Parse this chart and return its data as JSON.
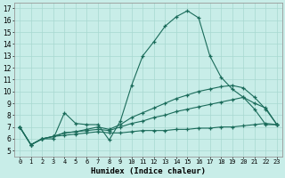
{
  "xlabel": "Humidex (Indice chaleur)",
  "background_color": "#c8ede8",
  "grid_color": "#a8d8d0",
  "line_color": "#1a6b5a",
  "xlim": [
    -0.5,
    23.5
  ],
  "ylim": [
    4.5,
    17.5
  ],
  "xticks": [
    0,
    1,
    2,
    3,
    4,
    5,
    6,
    7,
    8,
    9,
    10,
    11,
    12,
    13,
    14,
    15,
    16,
    17,
    18,
    19,
    20,
    21,
    22,
    23
  ],
  "yticks": [
    5,
    6,
    7,
    8,
    9,
    10,
    11,
    12,
    13,
    14,
    15,
    16,
    17
  ],
  "lines": [
    {
      "x": [
        0,
        1,
        2,
        3,
        4,
        5,
        6,
        7,
        8,
        9,
        10,
        11,
        12,
        13,
        14,
        15,
        16,
        17,
        18,
        19,
        20,
        21,
        22,
        23
      ],
      "y": [
        7,
        5.5,
        6,
        6,
        8.2,
        7.3,
        7.2,
        7.2,
        5.9,
        7.5,
        10.5,
        13,
        14.2,
        15.5,
        16.3,
        16.8,
        16.2,
        13,
        11.2,
        10.2,
        9.5,
        8.5,
        7.2,
        7.2
      ]
    },
    {
      "x": [
        0,
        1,
        2,
        3,
        4,
        5,
        6,
        7,
        8,
        9,
        10,
        11,
        12,
        13,
        14,
        15,
        16,
        17,
        18,
        19,
        20,
        21,
        22,
        23
      ],
      "y": [
        7,
        5.5,
        6,
        6.2,
        6.3,
        6.4,
        6.5,
        6.6,
        6.5,
        6.5,
        6.6,
        6.7,
        6.7,
        6.7,
        6.8,
        6.8,
        6.9,
        6.9,
        7.0,
        7.0,
        7.1,
        7.2,
        7.3,
        7.2
      ]
    },
    {
      "x": [
        0,
        1,
        2,
        3,
        4,
        5,
        6,
        7,
        8,
        9,
        10,
        11,
        12,
        13,
        14,
        15,
        16,
        17,
        18,
        19,
        20,
        21,
        22,
        23
      ],
      "y": [
        7,
        5.5,
        6,
        6.2,
        6.5,
        6.6,
        6.7,
        6.8,
        6.7,
        7.0,
        7.3,
        7.5,
        7.8,
        8.0,
        8.3,
        8.5,
        8.7,
        8.9,
        9.1,
        9.3,
        9.5,
        9.0,
        8.6,
        7.2
      ]
    },
    {
      "x": [
        0,
        1,
        2,
        3,
        4,
        5,
        6,
        7,
        8,
        9,
        10,
        11,
        12,
        13,
        14,
        15,
        16,
        17,
        18,
        19,
        20,
        21,
        22,
        23
      ],
      "y": [
        7,
        5.5,
        6,
        6.2,
        6.5,
        6.6,
        6.8,
        7.0,
        6.8,
        7.2,
        7.8,
        8.2,
        8.6,
        9.0,
        9.4,
        9.7,
        10.0,
        10.2,
        10.4,
        10.5,
        10.3,
        9.5,
        8.5,
        7.2
      ]
    }
  ]
}
